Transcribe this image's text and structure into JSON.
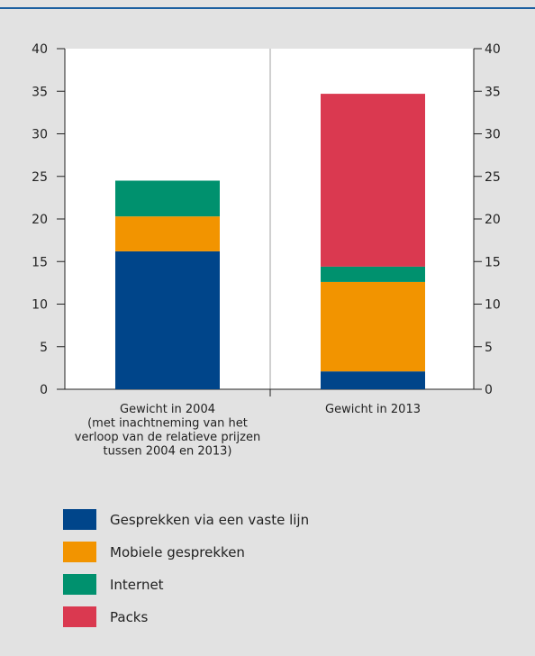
{
  "colors": {
    "fixed": "#00458a",
    "mobile": "#f29400",
    "internet": "#00916e",
    "packs": "#da3950",
    "rule": "#1b5fa0"
  },
  "chart_data": {
    "type": "bar",
    "stacked": true,
    "categories": [
      [
        "Gewicht in 2004",
        "(met inachtneming van het",
        "verloop van de relatieve prijzen",
        "tussen 2004 en 2013)"
      ],
      [
        "Gewicht in 2013"
      ]
    ],
    "series": [
      {
        "name": "Gesprekken via een vaste lijn",
        "color": "#00458a",
        "values": [
          16.2,
          2.1
        ]
      },
      {
        "name": "Mobiele gesprekken",
        "color": "#f29400",
        "values": [
          4.1,
          10.5
        ]
      },
      {
        "name": "Internet",
        "color": "#00916e",
        "values": [
          4.2,
          1.8
        ]
      },
      {
        "name": "Packs",
        "color": "#da3950",
        "values": [
          0,
          20.3
        ]
      }
    ],
    "ylim": [
      0,
      40
    ],
    "yticks": [
      0,
      5,
      10,
      15,
      20,
      25,
      30,
      35,
      40
    ],
    "title": "",
    "xlabel": "",
    "ylabel": "",
    "legend_position": "bottom-left"
  }
}
